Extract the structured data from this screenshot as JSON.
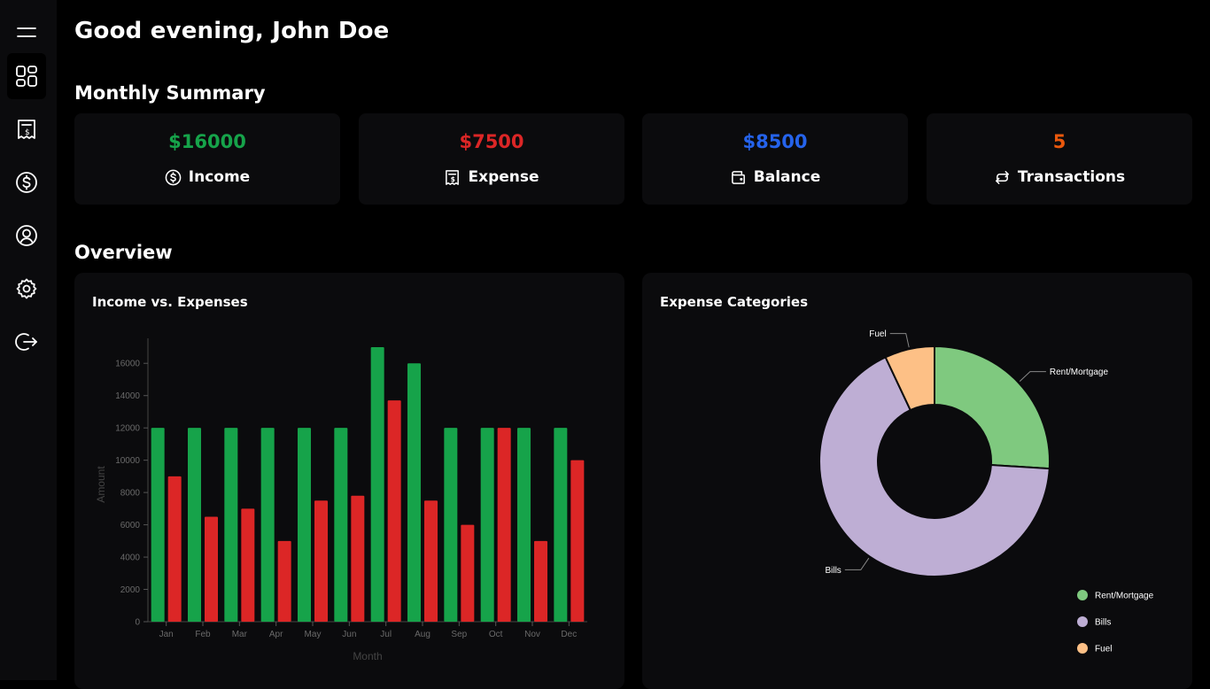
{
  "greeting": "Good evening, John Doe",
  "sidebar": {
    "items": [
      {
        "name": "menu-icon"
      },
      {
        "name": "dashboard-icon"
      },
      {
        "name": "receipt-icon"
      },
      {
        "name": "dollar-icon"
      },
      {
        "name": "user-icon"
      },
      {
        "name": "settings-icon"
      },
      {
        "name": "logout-icon"
      }
    ]
  },
  "summary": {
    "title": "Monthly Summary",
    "cards": [
      {
        "value": "$16000",
        "label": "Income",
        "color": "#16a34a",
        "icon": "dollar-circle-icon"
      },
      {
        "value": "$7500",
        "label": "Expense",
        "color": "#dc2626",
        "icon": "receipt-icon"
      },
      {
        "value": "$8500",
        "label": "Balance",
        "color": "#2563eb",
        "icon": "wallet-icon"
      },
      {
        "value": "5",
        "label": "Transactions",
        "color": "#ea580c",
        "icon": "repeat-icon"
      }
    ]
  },
  "overview": {
    "title": "Overview",
    "bar_title": "Income vs. Expenses",
    "pie_title": "Expense Categories"
  },
  "chart_data": [
    {
      "type": "bar",
      "title": "Income vs. Expenses",
      "xlabel": "Month",
      "ylabel": "Amount",
      "categories": [
        "Jan",
        "Feb",
        "Mar",
        "Apr",
        "May",
        "Jun",
        "Jul",
        "Aug",
        "Sep",
        "Oct",
        "Nov",
        "Dec"
      ],
      "series": [
        {
          "color": "#16a34a",
          "values": [
            12000,
            12000,
            12000,
            12000,
            12000,
            12000,
            17000,
            16000,
            12000,
            12000,
            12000,
            12000
          ]
        },
        {
          "color": "#dc2626",
          "values": [
            9000,
            6500,
            7000,
            5000,
            7500,
            7800,
            13700,
            7500,
            6000,
            12000,
            5000,
            10000
          ]
        }
      ],
      "ylim": [
        0,
        17000
      ],
      "yticks": [
        0,
        2000,
        4000,
        6000,
        8000,
        10000,
        12000,
        14000,
        16000
      ],
      "grid": false
    },
    {
      "type": "pie",
      "title": "Expense Categories",
      "donut": true,
      "slices": [
        {
          "name": "Rent/Mortgage",
          "value": 26,
          "color": "#7fc97f"
        },
        {
          "name": "Bills",
          "value": 67,
          "color": "#beaed4"
        },
        {
          "name": "Fuel",
          "value": 7,
          "color": "#fdc086"
        }
      ],
      "legend": "bottom-right"
    }
  ]
}
